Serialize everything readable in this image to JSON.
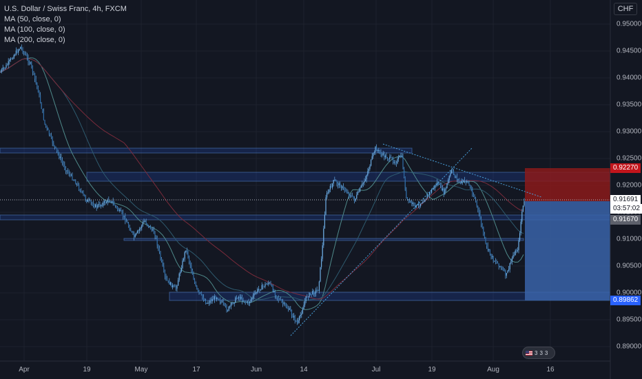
{
  "legend": {
    "symbol": "U.S. Dollar / Swiss Franc, 4h, FXCM",
    "ma50": "MA (50, close, 0)",
    "ma100": "MA (100, close, 0)",
    "ma200": "MA (200, close, 0)"
  },
  "currency": "CHF",
  "price_axis": [
    "0.95000",
    "0.94500",
    "0.94000",
    "0.93500",
    "0.93000",
    "0.92500",
    "0.92000",
    "0.91500",
    "0.91000",
    "0.90500",
    "0.90000",
    "0.89500",
    "0.89000"
  ],
  "tags": {
    "target": "0.92270",
    "current": "0.91691",
    "countdown": "03:57:02",
    "level": "0.91670",
    "stop": "0.89862"
  },
  "time_axis": [
    "Apr",
    "19",
    "May",
    "17",
    "Jun",
    "14",
    "Jul",
    "19",
    "Aug",
    "16"
  ],
  "events_badge": {
    "flag": "us-flag-icon",
    "counts": [
      "3",
      "3",
      "3"
    ]
  },
  "colors": {
    "background": "#131722",
    "candle": "#5b9bd5",
    "zone": "#2962ff",
    "target_zone": "#8b1a1a",
    "stop_zone": "#3a63a8",
    "ma50": "#4f8a8b",
    "ma100": "#2e5a6e",
    "ma200": "#7a2b3b"
  }
}
